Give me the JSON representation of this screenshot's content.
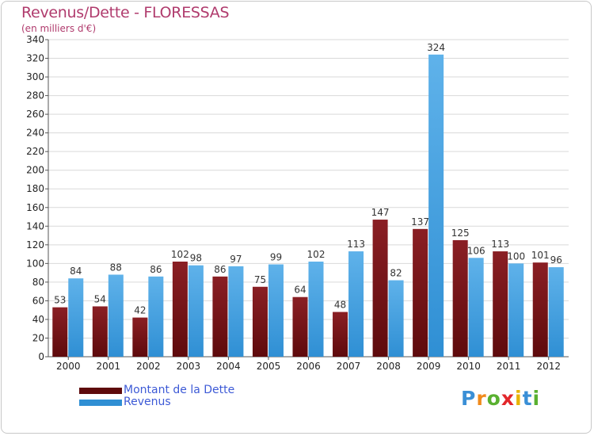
{
  "title": "Revenus/Dette - FLORESSAS",
  "subtitle": "(en milliers d'€)",
  "legend": {
    "dette": "Montant de la Dette",
    "revenus": "Revenus"
  },
  "logo": {
    "letters": [
      "P",
      "r",
      "o",
      "x",
      "i",
      "t",
      "i"
    ]
  },
  "colors": {
    "dette_top": "#8a1f24",
    "dette_bottom": "#5e0a0c",
    "revenus_top": "#5fb2ea",
    "revenus_bottom": "#2f8fd4",
    "title": "#b03b6d",
    "legend_text": "#3d5ad6",
    "grid": "#d9d9d9"
  },
  "chart_data": {
    "type": "bar",
    "title": "Revenus/Dette - FLORESSAS",
    "ylabel": "(en milliers d'€)",
    "xlabel": "",
    "categories": [
      "2000",
      "2001",
      "2002",
      "2003",
      "2004",
      "2005",
      "2006",
      "2007",
      "2008",
      "2009",
      "2010",
      "2011",
      "2012"
    ],
    "series": [
      {
        "name": "Montant de la Dette",
        "values": [
          53,
          54,
          42,
          102,
          86,
          75,
          64,
          48,
          147,
          137,
          125,
          113,
          101
        ]
      },
      {
        "name": "Revenus",
        "values": [
          84,
          88,
          86,
          98,
          97,
          99,
          102,
          113,
          82,
          324,
          106,
          100,
          96
        ]
      }
    ],
    "ylim": [
      0,
      340
    ],
    "yticks": [
      0,
      20,
      40,
      60,
      80,
      100,
      120,
      140,
      160,
      180,
      200,
      220,
      240,
      260,
      280,
      300,
      320,
      340
    ],
    "grid": true,
    "legend_position": "bottom-left"
  }
}
